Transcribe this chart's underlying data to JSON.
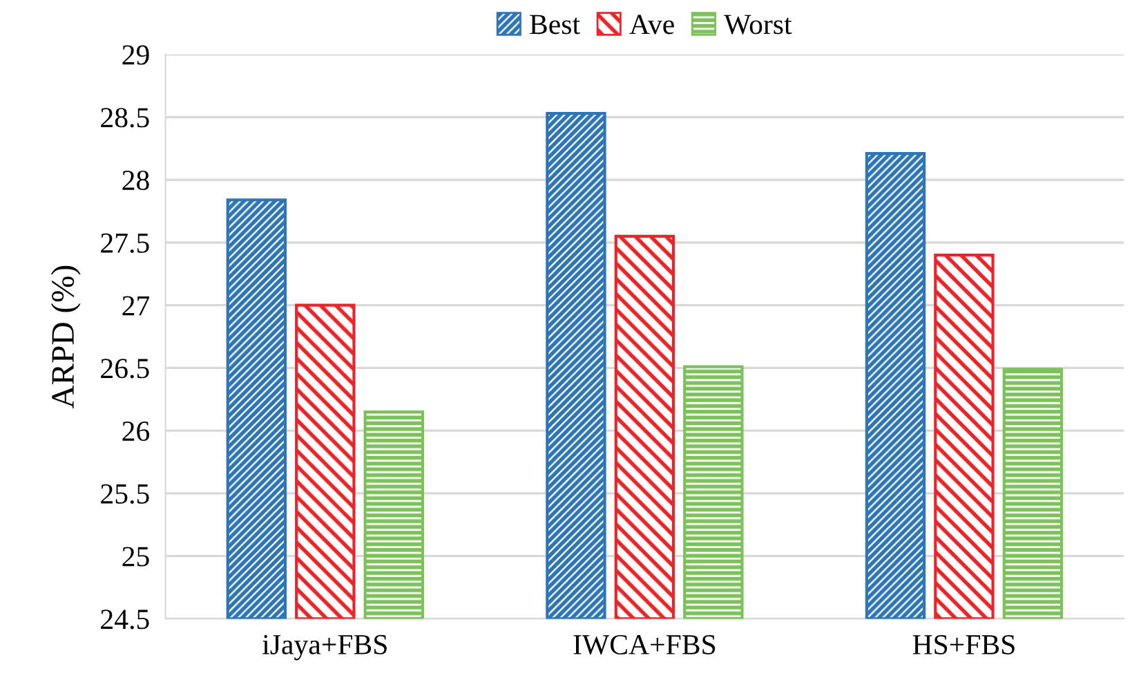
{
  "chart_data": {
    "type": "bar",
    "ylabel": "ARPD (%)",
    "categories": [
      "iJaya+FBS",
      "IWCA+FBS",
      "HS+FBS"
    ],
    "series": [
      {
        "name": "Best",
        "color": "#2e75b6",
        "values": [
          27.84,
          28.53,
          28.21
        ]
      },
      {
        "name": "Ave",
        "color": "#e8252a",
        "values": [
          27.0,
          27.55,
          27.4
        ]
      },
      {
        "name": "Worst",
        "color": "#7cc15a",
        "values": [
          26.15,
          26.51,
          26.49
        ]
      }
    ],
    "ylim": [
      24.5,
      29
    ],
    "yticks": [
      24.5,
      25,
      25.5,
      26,
      26.5,
      27,
      27.5,
      28,
      28.5,
      29
    ],
    "grid": "y",
    "legend": "top"
  }
}
